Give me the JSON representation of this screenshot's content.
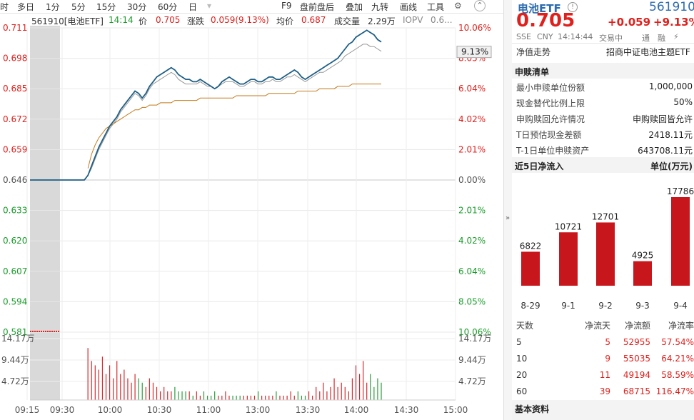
{
  "toolbar": {
    "left_items": [
      "时",
      "多日",
      "1分",
      "5分",
      "15分",
      "30分",
      "60分",
      "日"
    ],
    "right_items": [
      "F9",
      "盘前盘后",
      "叠加",
      "九转",
      "画线",
      "工具"
    ],
    "gear_icon": "gear-icon",
    "collapse_icon": "chevron-up-icon"
  },
  "infobar": {
    "code_name": "561910[电池ETF]",
    "time": "14:14",
    "price_label": "价",
    "price": "0.705",
    "change_label": "涨跌",
    "change": "0.059(9.13%)",
    "avg_label": "均价",
    "avg": "0.687",
    "volume_label": "成交量",
    "volume": "2.29万",
    "iopv_label": "IOPV",
    "iopv": "0.6..."
  },
  "chart_data": {
    "type": "line",
    "y_axis_left": [
      "0.711",
      "0.698",
      "0.685",
      "0.672",
      "0.659",
      "0.646",
      "0.633",
      "0.620",
      "0.607",
      "0.594",
      "0.581"
    ],
    "y_axis_right": [
      "10.06%",
      "8.05%",
      "6.04%",
      "4.02%",
      "2.01%",
      "0.00%",
      "2.01%",
      "4.02%",
      "6.04%",
      "8.05%",
      "10.06%"
    ],
    "current_pct_label": "9.13%",
    "prev_close": 0.646,
    "ylim": [
      0.581,
      0.711
    ],
    "x_ticks": [
      "09:15",
      "09:30",
      "10:00",
      "10:30",
      "11:00",
      "13:00",
      "13:30",
      "14:00",
      "14:30",
      "15:00"
    ],
    "volume_axis_left": [
      "14.17万",
      "9.44万",
      "4.72万"
    ],
    "volume_axis_right": [
      "14.17万",
      "9.44万",
      "4.72万"
    ],
    "series": [
      {
        "name": "价",
        "color": "#1e5f86",
        "values": [
          0.646,
          0.646,
          0.646,
          0.646,
          0.646,
          0.646,
          0.646,
          0.646,
          0.646,
          0.646,
          0.646,
          0.646,
          0.646,
          0.646,
          0.646,
          0.646,
          0.648,
          0.652,
          0.656,
          0.66,
          0.663,
          0.666,
          0.669,
          0.671,
          0.673,
          0.676,
          0.678,
          0.68,
          0.682,
          0.684,
          0.683,
          0.681,
          0.683,
          0.686,
          0.688,
          0.69,
          0.691,
          0.692,
          0.693,
          0.694,
          0.693,
          0.691,
          0.69,
          0.689,
          0.689,
          0.688,
          0.688,
          0.689,
          0.688,
          0.687,
          0.686,
          0.685,
          0.686,
          0.688,
          0.689,
          0.69,
          0.689,
          0.688,
          0.687,
          0.687,
          0.688,
          0.689,
          0.689,
          0.688,
          0.688,
          0.689,
          0.69,
          0.69,
          0.689,
          0.689,
          0.69,
          0.691,
          0.692,
          0.693,
          0.692,
          0.69,
          0.689,
          0.69,
          0.691,
          0.692,
          0.693,
          0.694,
          0.695,
          0.696,
          0.697,
          0.698,
          0.7,
          0.702,
          0.704,
          0.705,
          0.707,
          0.708,
          0.709,
          0.71,
          0.709,
          0.708,
          0.706,
          0.705
        ]
      },
      {
        "name": "均价",
        "color": "#c47a1a",
        "values": [
          null,
          null,
          null,
          null,
          null,
          null,
          null,
          null,
          null,
          null,
          null,
          null,
          null,
          null,
          null,
          null,
          0.651,
          0.657,
          0.661,
          0.664,
          0.666,
          0.668,
          0.669,
          0.67,
          0.671,
          0.672,
          0.673,
          0.674,
          0.675,
          0.676,
          0.676,
          0.677,
          0.677,
          0.678,
          0.678,
          0.678,
          0.679,
          0.679,
          0.679,
          0.679,
          0.68,
          0.68,
          0.68,
          0.68,
          0.68,
          0.68,
          0.68,
          0.681,
          0.681,
          0.681,
          0.681,
          0.681,
          0.681,
          0.681,
          0.681,
          0.681,
          0.681,
          0.682,
          0.682,
          0.682,
          0.682,
          0.682,
          0.682,
          0.682,
          0.682,
          0.682,
          0.683,
          0.683,
          0.683,
          0.683,
          0.683,
          0.683,
          0.683,
          0.683,
          0.684,
          0.684,
          0.684,
          0.684,
          0.684,
          0.684,
          0.685,
          0.685,
          0.685,
          0.685,
          0.685,
          0.686,
          0.686,
          0.686,
          0.686,
          0.687,
          0.687,
          0.687,
          0.687,
          0.687,
          0.687,
          0.687,
          0.687,
          0.687
        ]
      },
      {
        "name": "IOPV",
        "color": "#999999",
        "values": [
          null,
          null,
          null,
          null,
          null,
          null,
          null,
          null,
          null,
          null,
          null,
          null,
          null,
          null,
          null,
          null,
          0.648,
          0.651,
          0.655,
          0.659,
          0.662,
          0.665,
          0.668,
          0.67,
          0.672,
          0.675,
          0.677,
          0.679,
          0.681,
          0.683,
          0.682,
          0.68,
          0.682,
          0.685,
          0.687,
          0.688,
          0.689,
          0.69,
          0.691,
          0.692,
          0.691,
          0.689,
          0.688,
          0.687,
          0.687,
          0.687,
          0.687,
          0.688,
          0.687,
          0.686,
          0.686,
          0.685,
          0.686,
          0.687,
          0.688,
          0.688,
          0.688,
          0.687,
          0.686,
          0.686,
          0.687,
          0.688,
          0.688,
          0.687,
          0.687,
          0.688,
          0.688,
          0.689,
          0.688,
          0.688,
          0.689,
          0.69,
          0.69,
          0.691,
          0.69,
          0.689,
          0.688,
          0.689,
          0.69,
          0.691,
          0.692,
          0.692,
          0.693,
          0.694,
          0.695,
          0.696,
          0.697,
          0.699,
          0.7,
          0.701,
          0.702,
          0.703,
          0.704,
          0.704,
          0.703,
          0.703,
          0.702,
          0.701
        ]
      }
    ],
    "volume_values": [
      0,
      0,
      0,
      0,
      0,
      0,
      0,
      0,
      0,
      0,
      0,
      0,
      0,
      0,
      0,
      0,
      12,
      9,
      8,
      7,
      10,
      6,
      8,
      5,
      9,
      6,
      7,
      5,
      4,
      6,
      5,
      4,
      3,
      5,
      4,
      3,
      2,
      3,
      2,
      2,
      3,
      2,
      2,
      2,
      2,
      1,
      2,
      1,
      2,
      1,
      1,
      2,
      1,
      1,
      2,
      1,
      1,
      1,
      1,
      1,
      1,
      1,
      1,
      2,
      1,
      1,
      1,
      1,
      2,
      1,
      1,
      1,
      2,
      1,
      2,
      1,
      1,
      2,
      1,
      3,
      2,
      4,
      2,
      3,
      5,
      3,
      4,
      3,
      2,
      5,
      8,
      6,
      9,
      4,
      6,
      3,
      5,
      4
    ]
  },
  "quote": {
    "name": "电池ETF",
    "info_icon": "info-icon",
    "code": "561910",
    "price": "0.705",
    "change": "+0.059",
    "change_pct": "+9.13%",
    "tags": [
      "SSE",
      "CNY",
      "14:14:44",
      "交易中"
    ],
    "right_tags": [
      "通",
      "融",
      "⚡"
    ],
    "nav_row_label": "净值走势",
    "nav_row_value": "招商中证电池主题ETF"
  },
  "redemption": {
    "title": "申赎清单",
    "rows": [
      {
        "label": "最小申赎单位份额",
        "value": "1,000,000"
      },
      {
        "label": "现金替代比例上限",
        "value": "50%"
      },
      {
        "label": "申购赎回允许情况",
        "value": "申购赎回皆允许"
      },
      {
        "label": "T日预估现金差额",
        "value": "2418.11元"
      },
      {
        "label": "T-1日单位申赎资产",
        "value": "643708.11元"
      }
    ]
  },
  "flow": {
    "title": "近5日净流入",
    "unit": "单位(万元)",
    "bar_color": "#c8161d",
    "bars": [
      {
        "date": "8-29",
        "value": 6822
      },
      {
        "date": "9-1",
        "value": 10721
      },
      {
        "date": "9-2",
        "value": 12701
      },
      {
        "date": "9-3",
        "value": 4925
      },
      {
        "date": "9-4",
        "value": 17786
      }
    ],
    "table_headers": [
      "天数",
      "净流天",
      "净流额",
      "净流率"
    ],
    "table_rows": [
      [
        "5",
        "5",
        "52955",
        "57.54%"
      ],
      [
        "10",
        "9",
        "55035",
        "64.21%"
      ],
      [
        "20",
        "11",
        "49194",
        "58.59%"
      ],
      [
        "60",
        "39",
        "68715",
        "116.47%"
      ]
    ]
  },
  "basic": {
    "title": "基本资料"
  }
}
